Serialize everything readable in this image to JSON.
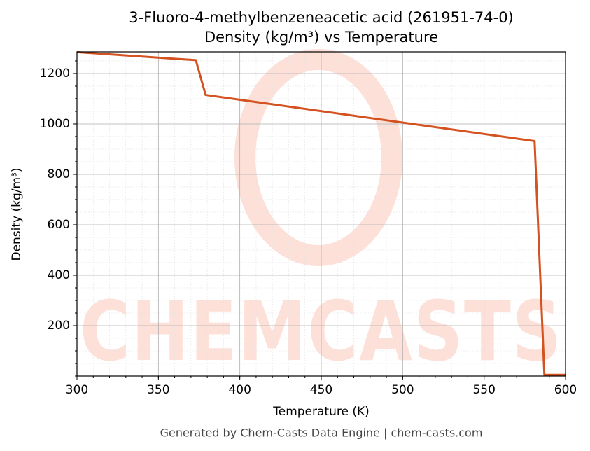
{
  "chart_data": {
    "type": "line",
    "title": "3-Fluoro-4-methylbenzeneacetic acid (261951-74-0)",
    "subtitle": "Density (kg/m³) vs Temperature",
    "x_label": "Temperature (K)",
    "y_label": "Density (kg/m³)",
    "footer": "Generated by Chem-Casts Data Engine | chem-casts.com",
    "watermark": "CHEMCASTS",
    "x": [
      300,
      373,
      379,
      581,
      587,
      600
    ],
    "series": [
      {
        "name": "Density",
        "color": "#d4521f",
        "values": [
          1285,
          1253,
          1115,
          932,
          5,
          5
        ]
      }
    ],
    "xlim": [
      300,
      600
    ],
    "xticks": [
      300,
      350,
      400,
      450,
      500,
      550,
      600
    ],
    "ylim": [
      0,
      1286
    ],
    "yticks": [
      200,
      400,
      600,
      800,
      1000,
      1200
    ],
    "grid": true
  }
}
